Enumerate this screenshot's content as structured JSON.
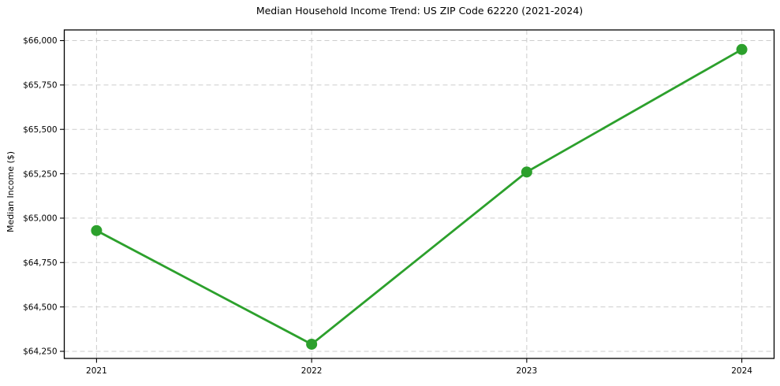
{
  "chart_data": {
    "type": "line",
    "title": "Median Household Income Trend: US ZIP Code 62220 (2021-2024)",
    "xlabel": "",
    "ylabel": "Median Income ($)",
    "categories": [
      "2021",
      "2022",
      "2023",
      "2024"
    ],
    "x": [
      2021,
      2022,
      2023,
      2024
    ],
    "series": [
      {
        "values": [
          64930,
          64290,
          65260,
          65950
        ],
        "color": "#2ca02c",
        "marker": "circle"
      }
    ],
    "yticks": [
      64250,
      64500,
      64750,
      65000,
      65250,
      65500,
      65750,
      66000
    ],
    "ytick_labels": [
      "$64,250",
      "$64,500",
      "$64,750",
      "$65,000",
      "$65,250",
      "$65,500",
      "$65,750",
      "$66,000"
    ],
    "xlim": [
      2020.85,
      2024.15
    ],
    "ylim": [
      64210,
      66060
    ],
    "grid": true,
    "grid_color": "#cdcdcd",
    "axis_color": "#000000",
    "background": "#ffffff",
    "legend_position": "none"
  }
}
